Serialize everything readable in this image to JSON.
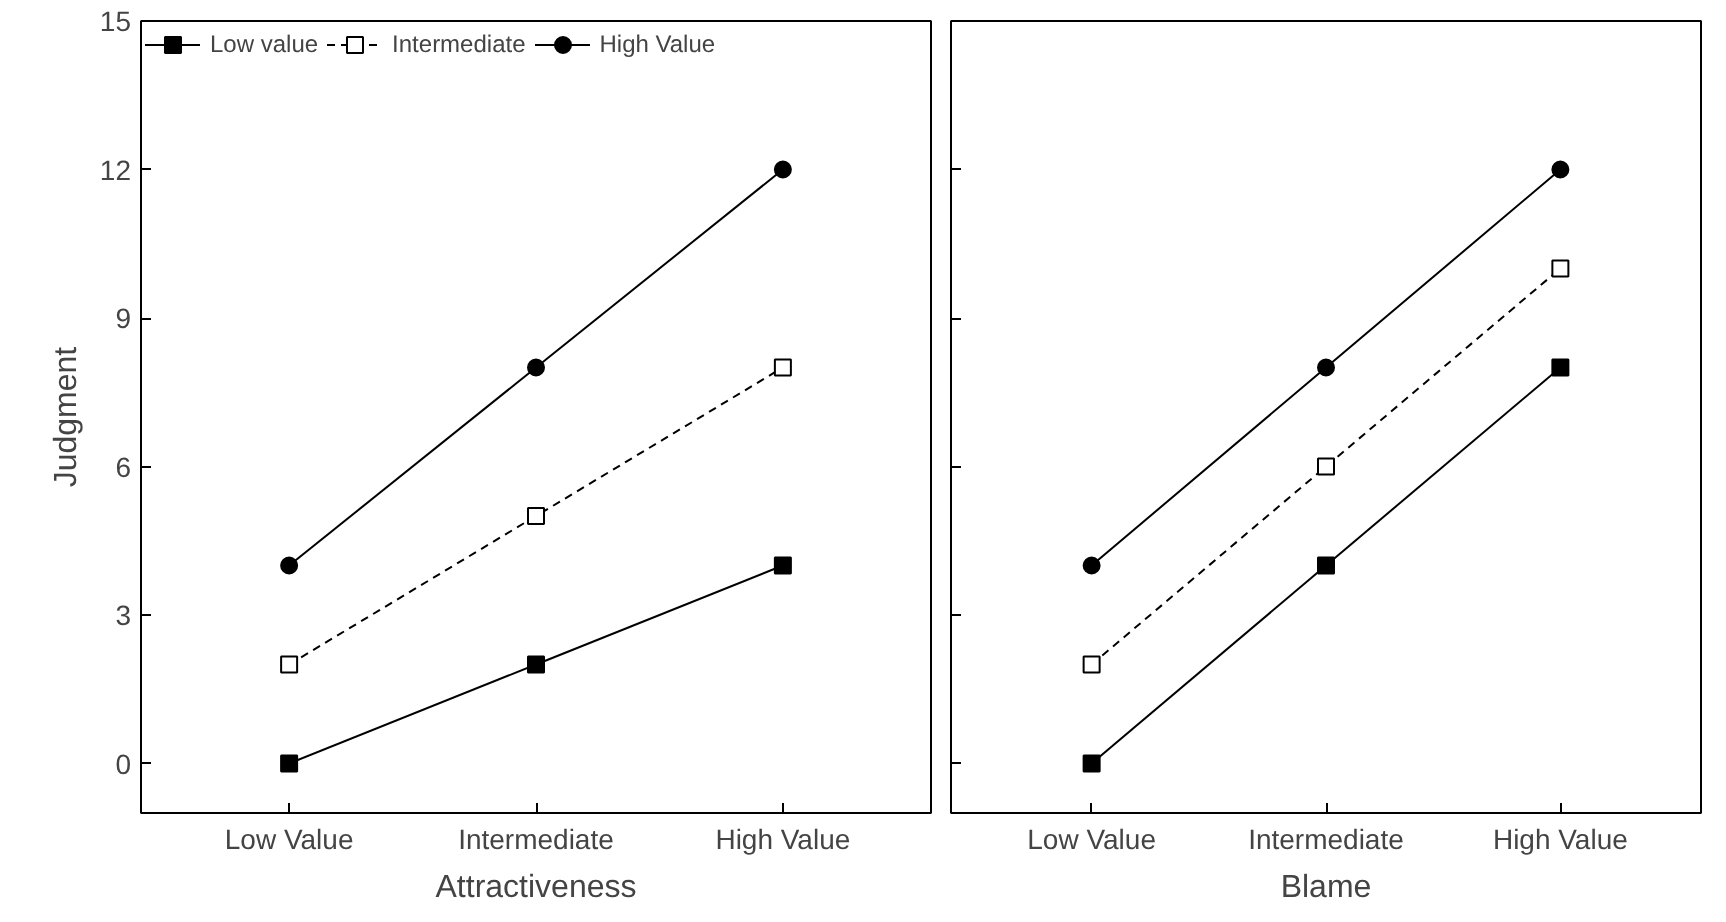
{
  "chart_data": [
    {
      "type": "line",
      "xlabel": "Attractiveness",
      "ylabel": "Judgment",
      "categories": [
        "Low Value",
        "Intermediate",
        "High Value"
      ],
      "ylim": [
        -1,
        15
      ],
      "yticks": [
        0,
        3,
        6,
        9,
        12,
        15
      ],
      "grid": false,
      "legend": "top left",
      "series": [
        {
          "name": "Low value",
          "color": "#000000",
          "values": [
            0,
            2,
            4
          ],
          "marker": "square",
          "line_style": "solid"
        },
        {
          "name": "Intermediate",
          "color": "#000000",
          "values": [
            2,
            5,
            8
          ],
          "marker": "square",
          "line_style": "dashed"
        },
        {
          "name": "High Value",
          "color": "#000000",
          "values": [
            4,
            8,
            12
          ],
          "marker": "circle",
          "line_style": "solid"
        }
      ]
    },
    {
      "type": "line",
      "xlabel": "Blame",
      "categories": [
        "Low Value",
        "Intermediate",
        "High Value"
      ],
      "ylim": [
        -1,
        15
      ],
      "yticks": [
        0,
        3,
        6,
        9,
        12,
        15
      ],
      "grid": false,
      "tick_labels": "x",
      "series": [
        {
          "color": "#000000",
          "values": [
            0,
            4,
            8
          ],
          "marker": "square",
          "line_style": "solid"
        },
        {
          "color": "#000000",
          "values": [
            2,
            6,
            10
          ],
          "marker": "square",
          "line_style": "dashed"
        },
        {
          "color": "#000000",
          "values": [
            4,
            8,
            12
          ],
          "marker": "circle",
          "line_style": "solid"
        }
      ]
    }
  ]
}
